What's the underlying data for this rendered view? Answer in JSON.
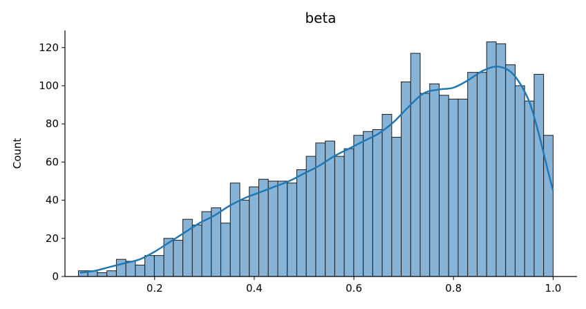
{
  "chart_data": {
    "type": "bar",
    "title": "beta",
    "xlabel": "",
    "ylabel": "Count",
    "xlim": [
      0.02,
      1.048
    ],
    "ylim": [
      0,
      129
    ],
    "x_ticks": [
      0.2,
      0.4,
      0.6,
      0.8,
      1.0
    ],
    "x_tick_labels": [
      "0.2",
      "0.4",
      "0.6",
      "0.8",
      "1.0"
    ],
    "y_ticks": [
      0,
      20,
      40,
      60,
      80,
      100,
      120
    ],
    "y_tick_labels": [
      "0",
      "20",
      "40",
      "60",
      "80",
      "100",
      "120"
    ],
    "grid": false,
    "legend": "none",
    "bins": {
      "start": 0.047,
      "width": 0.01906,
      "counts": [
        3,
        3,
        2,
        3,
        9,
        8,
        6,
        11,
        11,
        20,
        19,
        30,
        27,
        34,
        36,
        28,
        49,
        40,
        47,
        51,
        50,
        50,
        49,
        56,
        63,
        70,
        71,
        63,
        67,
        74,
        76,
        77,
        85,
        73,
        102,
        117,
        96,
        101,
        95,
        93,
        93,
        107,
        107,
        123,
        122,
        111,
        100,
        92,
        106,
        74
      ]
    },
    "kde": {
      "x": [
        0.05,
        0.08,
        0.11,
        0.14,
        0.17,
        0.2,
        0.23,
        0.26,
        0.29,
        0.32,
        0.35,
        0.38,
        0.41,
        0.44,
        0.47,
        0.5,
        0.53,
        0.56,
        0.59,
        0.62,
        0.65,
        0.68,
        0.71,
        0.74,
        0.77,
        0.8,
        0.83,
        0.86,
        0.89,
        0.92,
        0.95,
        0.97,
        0.99,
        1.0
      ],
      "y": [
        2,
        3,
        5,
        7,
        9,
        13,
        18,
        23,
        28,
        32,
        37,
        41,
        44,
        47,
        50,
        54,
        58,
        63,
        67,
        71,
        75,
        81,
        89,
        96,
        98,
        99,
        103,
        108,
        110,
        106,
        93,
        76,
        55,
        45
      ]
    },
    "colors": {
      "bar_fill": "#87b3d6",
      "bar_stroke": "#1a1a1a",
      "kde_line": "#1f77b4"
    }
  }
}
